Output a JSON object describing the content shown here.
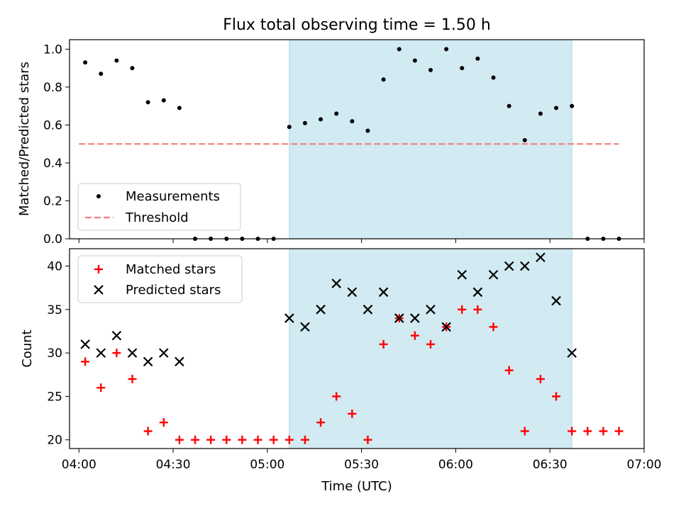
{
  "chart_data": [
    {
      "type": "scatter",
      "title": "Flux total observing time = 1.50 h",
      "xlabel": "",
      "ylabel": "Matched/Predicted stars",
      "xlim": [
        "03:57",
        "07:00"
      ],
      "ylim": [
        0,
        1.05
      ],
      "yticks": [
        "0.0",
        "0.2",
        "0.4",
        "0.6",
        "0.8",
        "1.0"
      ],
      "shaded_span": [
        "05:07",
        "06:37"
      ],
      "shade_color": "#add8e6",
      "legend_position": "lower-left",
      "legend": [
        {
          "label": "Measurements",
          "marker": "dot",
          "color": "#000000"
        },
        {
          "label": "Threshold",
          "marker": "dashed-line",
          "color": "#f08080"
        }
      ],
      "threshold": {
        "name": "Threshold",
        "y": 0.5,
        "x_range": [
          "04:00",
          "06:52"
        ],
        "color": "#f08080"
      },
      "series": [
        {
          "name": "Measurements",
          "color": "#000000",
          "points": [
            [
              "04:02",
              0.93
            ],
            [
              "04:07",
              0.87
            ],
            [
              "04:12",
              0.94
            ],
            [
              "04:17",
              0.9
            ],
            [
              "04:22",
              0.72
            ],
            [
              "04:27",
              0.73
            ],
            [
              "04:32",
              0.69
            ],
            [
              "04:37",
              0.0
            ],
            [
              "04:42",
              0.0
            ],
            [
              "04:47",
              0.0
            ],
            [
              "04:52",
              0.0
            ],
            [
              "04:57",
              0.0
            ],
            [
              "05:02",
              0.0
            ],
            [
              "05:07",
              0.59
            ],
            [
              "05:12",
              0.61
            ],
            [
              "05:17",
              0.63
            ],
            [
              "05:22",
              0.66
            ],
            [
              "05:27",
              0.62
            ],
            [
              "05:32",
              0.57
            ],
            [
              "05:37",
              0.84
            ],
            [
              "05:42",
              1.0
            ],
            [
              "05:47",
              0.94
            ],
            [
              "05:52",
              0.89
            ],
            [
              "05:57",
              1.0
            ],
            [
              "06:02",
              0.9
            ],
            [
              "06:07",
              0.95
            ],
            [
              "06:12",
              0.85
            ],
            [
              "06:17",
              0.7
            ],
            [
              "06:22",
              0.52
            ],
            [
              "06:27",
              0.66
            ],
            [
              "06:32",
              0.69
            ],
            [
              "06:37",
              0.7
            ],
            [
              "06:42",
              0.0
            ],
            [
              "06:47",
              0.0
            ],
            [
              "06:52",
              0.0
            ]
          ]
        }
      ]
    },
    {
      "type": "scatter",
      "title": "",
      "xlabel": "Time (UTC)",
      "ylabel": "Count",
      "xlim": [
        "03:57",
        "07:00"
      ],
      "xticks": [
        "04:00",
        "04:30",
        "05:00",
        "05:30",
        "06:00",
        "06:30",
        "07:00"
      ],
      "ylim": [
        19,
        42
      ],
      "yticks": [
        "20",
        "25",
        "30",
        "35",
        "40"
      ],
      "shaded_span": [
        "05:07",
        "06:37"
      ],
      "shade_color": "#add8e6",
      "legend_position": "upper-left",
      "series": [
        {
          "name": "Matched stars",
          "marker": "plus",
          "color": "#ff0000",
          "points": [
            [
              "04:02",
              29
            ],
            [
              "04:07",
              26
            ],
            [
              "04:12",
              30
            ],
            [
              "04:17",
              27
            ],
            [
              "04:22",
              21
            ],
            [
              "04:27",
              22
            ],
            [
              "04:32",
              20
            ],
            [
              "04:37",
              20
            ],
            [
              "04:42",
              20
            ],
            [
              "04:47",
              20
            ],
            [
              "04:52",
              20
            ],
            [
              "04:57",
              20
            ],
            [
              "05:02",
              20
            ],
            [
              "05:07",
              20
            ],
            [
              "05:12",
              20
            ],
            [
              "05:17",
              22
            ],
            [
              "05:22",
              25
            ],
            [
              "05:27",
              23
            ],
            [
              "05:32",
              20
            ],
            [
              "05:37",
              31
            ],
            [
              "05:42",
              34
            ],
            [
              "05:47",
              32
            ],
            [
              "05:52",
              31
            ],
            [
              "05:57",
              33
            ],
            [
              "06:02",
              35
            ],
            [
              "06:07",
              35
            ],
            [
              "06:12",
              33
            ],
            [
              "06:17",
              28
            ],
            [
              "06:22",
              21
            ],
            [
              "06:27",
              27
            ],
            [
              "06:32",
              25
            ],
            [
              "06:37",
              21
            ],
            [
              "06:42",
              21
            ],
            [
              "06:47",
              21
            ],
            [
              "06:52",
              21
            ]
          ]
        },
        {
          "name": "Predicted stars",
          "marker": "x",
          "color": "#000000",
          "points": [
            [
              "04:02",
              31
            ],
            [
              "04:07",
              30
            ],
            [
              "04:12",
              32
            ],
            [
              "04:17",
              30
            ],
            [
              "04:22",
              29
            ],
            [
              "04:27",
              30
            ],
            [
              "04:32",
              29
            ],
            [
              "05:07",
              34
            ],
            [
              "05:12",
              33
            ],
            [
              "05:17",
              35
            ],
            [
              "05:22",
              38
            ],
            [
              "05:27",
              37
            ],
            [
              "05:32",
              35
            ],
            [
              "05:37",
              37
            ],
            [
              "05:42",
              34
            ],
            [
              "05:47",
              34
            ],
            [
              "05:52",
              35
            ],
            [
              "05:57",
              33
            ],
            [
              "06:02",
              39
            ],
            [
              "06:07",
              37
            ],
            [
              "06:12",
              39
            ],
            [
              "06:17",
              40
            ],
            [
              "06:22",
              40
            ],
            [
              "06:27",
              41
            ],
            [
              "06:32",
              36
            ],
            [
              "06:37",
              30
            ]
          ]
        }
      ]
    }
  ]
}
